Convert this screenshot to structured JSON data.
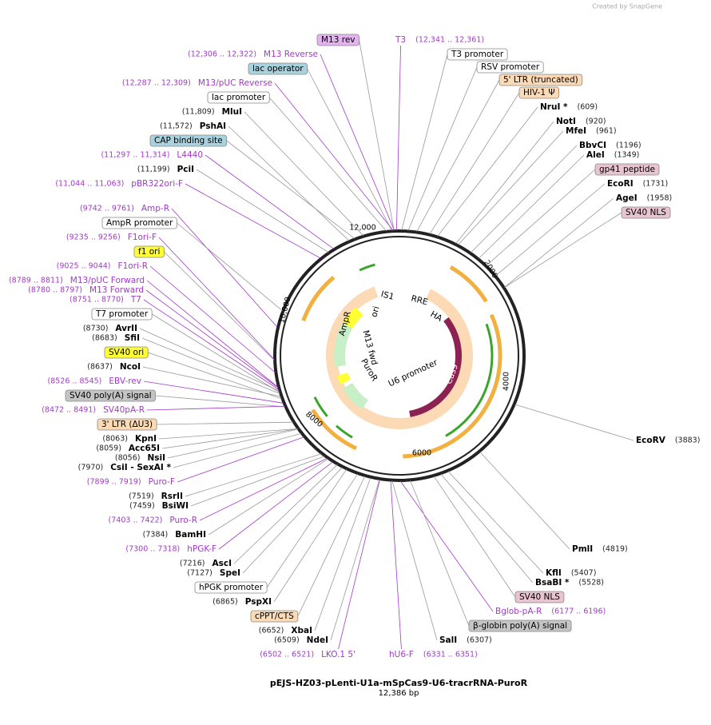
{
  "credit": "Created by SnapGene",
  "title": "pEJS-HZ03-pLenti-U1a-mSpCas9-U6-tracrRNA-PuroR",
  "size": "12,386 bp",
  "ring_ticks": [
    "12,000",
    "2000",
    "4000",
    "6000",
    "8000",
    "10,000"
  ],
  "features": [
    "IS1",
    "RRE",
    "HA",
    "Cas9",
    "U6 promoter",
    "PuroR",
    "M13 fwd",
    "AmpR",
    "ori"
  ],
  "labels": [
    {
      "name": "M13 rev",
      "color": "#e3b3ef"
    },
    {
      "position": "(12,306 .. 12,322)",
      "name": "M13 Reverse"
    },
    {
      "name": "lac operator",
      "color": "#a9d2de"
    },
    {
      "position": "(12,287 .. 12,309)",
      "name": "M13/pUC Reverse"
    },
    {
      "name": "lac promoter",
      "color": "#ffffff"
    },
    {
      "position": "(11,809)",
      "name": "MluI"
    },
    {
      "position": "(11,572)",
      "name": "PshAI"
    },
    {
      "name": "CAP binding site",
      "color": "#a9d2de"
    },
    {
      "position": "(11,297 .. 11,314)",
      "name": "L4440"
    },
    {
      "position": "(11,199)",
      "name": "PciI"
    },
    {
      "position": "(11,044 .. 11,063)",
      "name": "pBR322ori-F"
    },
    {
      "position": "(9742 .. 9761)",
      "name": "Amp-R"
    },
    {
      "name": "AmpR promoter",
      "color": "#ffffff"
    },
    {
      "position": "(9235 .. 9256)",
      "name": "F1ori-F"
    },
    {
      "name": "f1 ori",
      "color": "#ffff33"
    },
    {
      "position": "(9025 .. 9044)",
      "name": "F1ori-R"
    },
    {
      "position": "(8789 .. 8811)",
      "name": "M13/pUC Forward"
    },
    {
      "position": "(8780 .. 8797)",
      "name": "M13 Forward"
    },
    {
      "position": "(8751 .. 8770)",
      "name": "T7"
    },
    {
      "name": "T7 promoter",
      "color": "#ffffff"
    },
    {
      "position": "(8730)",
      "name": "AvrII"
    },
    {
      "position": "(8683)",
      "name": "SfiI"
    },
    {
      "name": "SV40 ori",
      "color": "#ffff33"
    },
    {
      "position": "(8637)",
      "name": "NcoI"
    },
    {
      "position": "(8526 .. 8545)",
      "name": "EBV-rev"
    },
    {
      "name": "SV40 poly(A) signal",
      "color": "#c4c4c4"
    },
    {
      "position": "(8472 .. 8491)",
      "name": "SV40pA-R"
    },
    {
      "name": "3' LTR (ΔU3)",
      "color": "#fbdab5"
    },
    {
      "position": "(8063)",
      "name": "KpnI"
    },
    {
      "position": "(8059)",
      "name": "Acc65I"
    },
    {
      "position": "(8056)",
      "name": "NsiI"
    },
    {
      "position": "(7970)",
      "name": "CsiI - SexAI *"
    },
    {
      "position": "(7899 .. 7919)",
      "name": "Puro-F"
    },
    {
      "position": "(7519)",
      "name": "RsrII"
    },
    {
      "position": "(7459)",
      "name": "BsiWI"
    },
    {
      "position": "(7403 .. 7422)",
      "name": "Puro-R"
    },
    {
      "position": "(7384)",
      "name": "BamHI"
    },
    {
      "position": "(7300 .. 7318)",
      "name": "hPGK-F"
    },
    {
      "position": "(7216)",
      "name": "AscI"
    },
    {
      "position": "(7127)",
      "name": "SpeI"
    },
    {
      "name": "hPGK promoter",
      "color": "#ffffff"
    },
    {
      "position": "(6865)",
      "name": "PspXI"
    },
    {
      "name": "cPPT/CTS",
      "color": "#fbdab5"
    },
    {
      "position": "(6652)",
      "name": "XbaI"
    },
    {
      "position": "(6509)",
      "name": "NdeI"
    },
    {
      "position": "(6502 .. 6521)",
      "name": "LKO.1 5'"
    },
    {
      "name": "T3",
      "position": "(12,341 .. 12,361)"
    },
    {
      "name": "T3 promoter",
      "color": "#ffffff"
    },
    {
      "name": "RSV promoter",
      "color": "#ffffff"
    },
    {
      "name": "5' LTR (truncated)",
      "color": "#fbdab5"
    },
    {
      "name": "HIV-1 Ψ",
      "color": "#fbdab5"
    },
    {
      "name": "NruI *",
      "position": "(609)"
    },
    {
      "name": "NotI",
      "position": "(920)"
    },
    {
      "name": "MfeI",
      "position": "(961)"
    },
    {
      "name": "BbvCI",
      "position": "(1196)"
    },
    {
      "name": "AleI",
      "position": "(1349)"
    },
    {
      "name": "gp41 peptide",
      "color": "#e8c3d0"
    },
    {
      "name": "EcoRI",
      "position": "(1731)"
    },
    {
      "name": "AgeI",
      "position": "(1958)"
    },
    {
      "name": "SV40 NLS",
      "color": "#e8c3d0"
    },
    {
      "name": "EcoRV",
      "position": "(3883)"
    },
    {
      "name": "PmlI",
      "position": "(4819)"
    },
    {
      "name": "KflI",
      "position": "(5407)"
    },
    {
      "name": "BsaBI *",
      "position": "(5528)"
    },
    {
      "name": "SV40 NLS",
      "color": "#e8c3d0"
    },
    {
      "name": "Bglob-pA-R",
      "position": "(6177 .. 6196)"
    },
    {
      "name": "β-globin poly(A) signal",
      "color": "#c4c4c4"
    },
    {
      "name": "SalI",
      "position": "(6307)"
    },
    {
      "name": "hU6-F",
      "position": "(6331 .. 6351)"
    }
  ]
}
